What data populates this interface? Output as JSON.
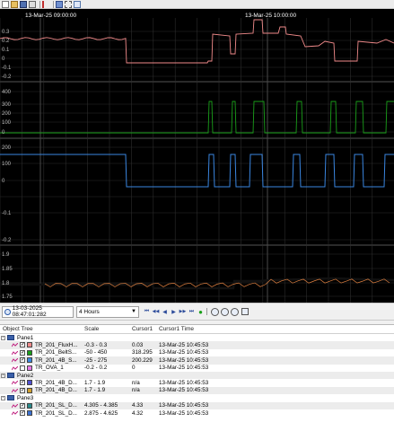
{
  "time_axis": {
    "labels": [
      "13-Mar-25 09:00:00",
      "13-Mar-25 10:00:00"
    ]
  },
  "panes": [
    {
      "y_labels": [
        "0.3",
        "0.2",
        "0.1",
        "0",
        "-0.1",
        "-0.2"
      ]
    },
    {
      "y_labels": [
        "400",
        "300",
        "200",
        "100",
        "0"
      ]
    },
    {
      "y_labels": [
        "200",
        "100",
        "0",
        "-0.1",
        "-0.2"
      ]
    },
    {
      "y_labels": [
        "1.9",
        "1.85",
        "1.8",
        "1.75"
      ]
    }
  ],
  "colors": {
    "flux": "#f08a8a",
    "belts": "#1a9e1a",
    "4b": "#3a86e0",
    "ova": "#b0b0b0",
    "sl1": "#000000",
    "sl2": "#e08040",
    "cursor": "#3c3c3c",
    "grid": "#2d2d2d",
    "chart_bg": "#000000"
  },
  "controls": {
    "start_time": "13-03-2025 08:47:01:282",
    "range": "4 Hours",
    "nav_first": "⏮",
    "nav_prev_fast": "◀◀",
    "nav_prev": "◀",
    "nav_next": "▶",
    "nav_next_fast": "▶▶",
    "nav_last": "⏭",
    "go": "●"
  },
  "tree": {
    "headers": {
      "object_tree": "Object Tree",
      "scale": "Scale",
      "cursor1": "Cursor1",
      "cursor1_time": "Cursor1 Time"
    },
    "rows": [
      {
        "kind": "pane",
        "label": "Pane1"
      },
      {
        "kind": "item",
        "label": "TR_201_FluxH...",
        "scale": "-0.3 - 0.3",
        "cursor": "0.03",
        "time": "13-Mar-25 10:45:53",
        "swatch": "#f08a8a",
        "checked": "✓"
      },
      {
        "kind": "item",
        "label": "TR_201_BeltS...",
        "scale": "-50 - 450",
        "cursor": "318.295",
        "time": "13-Mar-25 10:45:53",
        "swatch": "#1a9e1a",
        "checked": "✓"
      },
      {
        "kind": "item",
        "label": "TR_201_4B_S...",
        "scale": "-25 - 275",
        "cursor": "200.229",
        "time": "13-Mar-25 10:45:53",
        "swatch": "#3a86e0",
        "checked": "✓"
      },
      {
        "kind": "item",
        "label": "TR_OVA_1",
        "scale": "-0.2 - 0.2",
        "cursor": "0",
        "time": "13-Mar-25 10:45:53",
        "swatch": "#e87ae8",
        "checked": ""
      },
      {
        "kind": "pane",
        "label": "Pane2"
      },
      {
        "kind": "item",
        "label": "TR_201_4B_D...",
        "scale": "1.7 - 1.9",
        "cursor": "n/a",
        "time": "13-Mar-25 10:45:53",
        "swatch": "#5050d0",
        "checked": "✓"
      },
      {
        "kind": "item",
        "label": "TR_201_4B_D...",
        "scale": "1.7 - 1.9",
        "cursor": "n/a",
        "time": "13-Mar-25 10:45:53",
        "swatch": "#d0a030",
        "checked": "✓"
      },
      {
        "kind": "pane",
        "label": "Pane3"
      },
      {
        "kind": "item",
        "label": "TR_201_SL_D...",
        "scale": "4.305 - 4.385",
        "cursor": "4.33",
        "time": "13-Mar-25 10:45:53",
        "swatch": "#2a8a8a",
        "checked": "✓"
      },
      {
        "kind": "item",
        "label": "TR_201_SL_D...",
        "scale": "2.875 - 4.625",
        "cursor": "4.32",
        "time": "13-Mar-25 10:45:53",
        "swatch": "#3a70d0",
        "checked": "✓"
      }
    ]
  }
}
